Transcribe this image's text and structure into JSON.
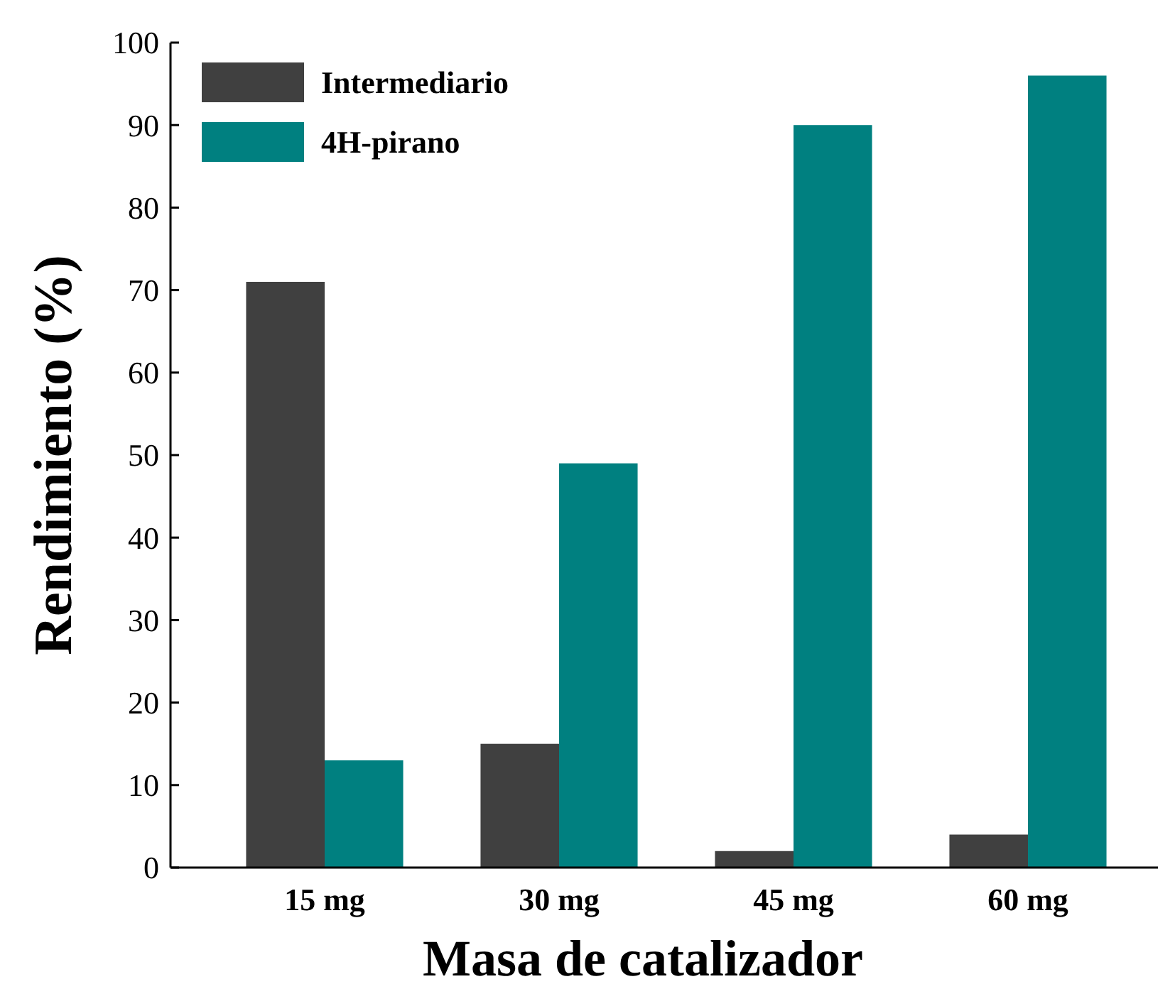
{
  "chart_data": {
    "type": "bar",
    "xlabel": "Masa de catalizador",
    "ylabel": "Rendimiento (%)",
    "categories": [
      "15 mg",
      "30 mg",
      "45 mg",
      "60 mg"
    ],
    "series": [
      {
        "name": "Intermediario",
        "color": "#404040",
        "values": [
          71,
          15,
          2,
          4
        ]
      },
      {
        "name": "4H-pirano",
        "color": "#008080",
        "values": [
          13,
          49,
          90,
          96
        ]
      }
    ],
    "ylim": [
      0,
      100
    ],
    "yticks": [
      0,
      10,
      20,
      30,
      40,
      50,
      60,
      70,
      80,
      90,
      100
    ],
    "grid": false,
    "legend": "top left"
  }
}
